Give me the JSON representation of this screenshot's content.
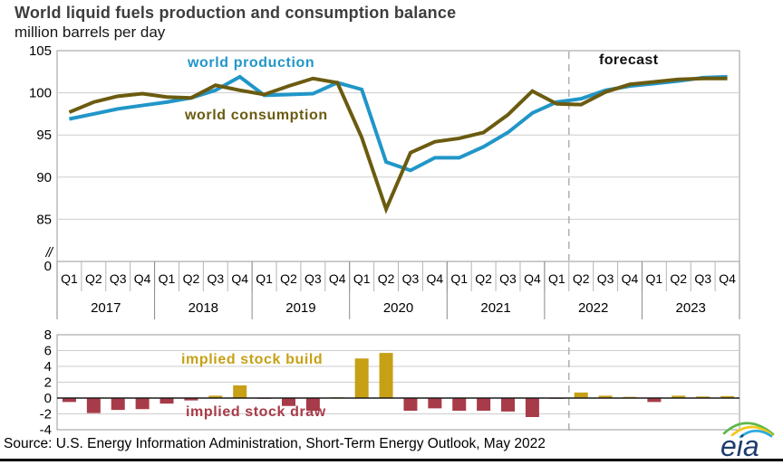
{
  "title": "World liquid fuels production and consumption balance",
  "subtitle": "million barrels per day",
  "source": "Source: U.S. Energy Information Administration, Short-Term Energy Outlook, May 2022",
  "logo_text": "eia",
  "annotations": {
    "production": "world production",
    "consumption": "world consumption",
    "forecast": "forecast",
    "stock_build": "implied stock build",
    "stock_draw": "implied stock draw"
  },
  "colors": {
    "production": "#2196C8",
    "consumption": "#6B5B10",
    "build": "#C7A016",
    "draw": "#A83B49",
    "grid": "#CDCDCD",
    "frame": "#9A9A9A",
    "tick": "#B5B5B5",
    "year_sep": "#8A8A8A",
    "dashed": "#B3B3B3",
    "zero_line": "#1A1A1A",
    "text": "#000000"
  },
  "chart_data": [
    {
      "type": "line",
      "title": "World liquid fuels production and consumption balance",
      "ylabel": "million barrels per day",
      "x": [
        "2017 Q1",
        "2017 Q2",
        "2017 Q3",
        "2017 Q4",
        "2018 Q1",
        "2018 Q2",
        "2018 Q3",
        "2018 Q4",
        "2019 Q1",
        "2019 Q2",
        "2019 Q3",
        "2019 Q4",
        "2020 Q1",
        "2020 Q2",
        "2020 Q3",
        "2020 Q4",
        "2021 Q1",
        "2021 Q2",
        "2021 Q3",
        "2021 Q4",
        "2022 Q1",
        "2022 Q2",
        "2022 Q3",
        "2022 Q4",
        "2023 Q1",
        "2023 Q2",
        "2023 Q3",
        "2023 Q4"
      ],
      "quarters": [
        "Q1",
        "Q2",
        "Q3",
        "Q4"
      ],
      "years": [
        "2017",
        "2018",
        "2019",
        "2020",
        "2021",
        "2022",
        "2023"
      ],
      "series": [
        {
          "name": "world production",
          "values": [
            96.9,
            97.5,
            98.1,
            98.5,
            98.9,
            99.4,
            100.3,
            101.9,
            99.7,
            99.8,
            99.9,
            101.2,
            100.4,
            91.8,
            90.8,
            92.3,
            92.3,
            93.6,
            95.3,
            97.6,
            98.9,
            99.3,
            100.3,
            100.8,
            101.1,
            101.4,
            101.8,
            101.9
          ]
        },
        {
          "name": "world consumption",
          "values": [
            97.7,
            98.9,
            99.6,
            99.9,
            99.5,
            99.4,
            100.9,
            100.3,
            99.8,
            100.8,
            101.7,
            101.2,
            94.7,
            86.2,
            92.9,
            94.2,
            94.6,
            95.3,
            97.4,
            100.2,
            98.7,
            98.6,
            100.1,
            101.0,
            101.3,
            101.6,
            101.7,
            101.7
          ]
        }
      ],
      "ylim": [
        85,
        105
      ],
      "yticks": [
        105,
        100,
        95,
        90,
        85
      ],
      "broken_axis": {
        "break_label": "//",
        "zero_label": "0"
      },
      "forecast_divider_after": "2022 Q1",
      "forecast_label": "forecast",
      "grid": true,
      "legend_position": "inline-annotations"
    },
    {
      "type": "bar",
      "x": [
        "2017 Q1",
        "2017 Q2",
        "2017 Q3",
        "2017 Q4",
        "2018 Q1",
        "2018 Q2",
        "2018 Q3",
        "2018 Q4",
        "2019 Q1",
        "2019 Q2",
        "2019 Q3",
        "2019 Q4",
        "2020 Q1",
        "2020 Q2",
        "2020 Q3",
        "2020 Q4",
        "2021 Q1",
        "2021 Q2",
        "2021 Q3",
        "2021 Q4",
        "2022 Q1",
        "2022 Q2",
        "2022 Q3",
        "2022 Q4",
        "2023 Q1",
        "2023 Q2",
        "2023 Q3",
        "2023 Q4"
      ],
      "values": [
        -0.5,
        -1.9,
        -1.5,
        -1.4,
        -0.7,
        -0.3,
        0.3,
        1.6,
        -0.1,
        -1.0,
        -1.6,
        0.1,
        5.0,
        5.7,
        -1.6,
        -1.3,
        -1.6,
        -1.6,
        -1.7,
        -2.4,
        -0.1,
        0.7,
        0.3,
        0.15,
        -0.5,
        0.3,
        0.2,
        0.25
      ],
      "positive_label": "implied stock build",
      "negative_label": "implied stock draw",
      "ylim": [
        -4,
        8
      ],
      "yticks": [
        8,
        6,
        4,
        2,
        0,
        -2,
        -4
      ],
      "forecast_divider_after": "2022 Q1",
      "grid": true
    }
  ]
}
